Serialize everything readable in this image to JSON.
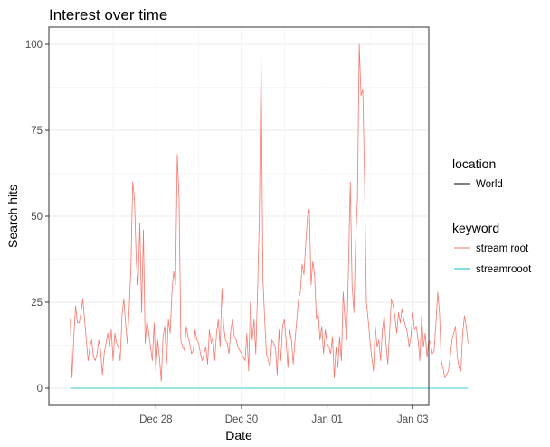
{
  "chart_data": {
    "type": "line",
    "title": "Interest over time",
    "xlabel": "Date",
    "ylabel": "Search hits",
    "xlim": [
      "2017-12-25T12:00",
      "2018-01-03T09:00"
    ],
    "ylim": [
      -5,
      105
    ],
    "x_ticks": [
      {
        "value": "2017-12-28",
        "label": "Dec 28"
      },
      {
        "value": "2017-12-30",
        "label": "Dec 30"
      },
      {
        "value": "2018-01-01",
        "label": "Jan 01"
      },
      {
        "value": "2018-01-03",
        "label": "Jan 03"
      }
    ],
    "y_ticks": [
      0,
      25,
      50,
      75,
      100
    ],
    "grid": true,
    "legend_placement": "right",
    "legends": [
      {
        "title": "location",
        "entries": [
          {
            "label": "World",
            "color": "#000000"
          }
        ]
      },
      {
        "title": "keyword",
        "entries": [
          {
            "label": "stream root",
            "color": "#F8766D"
          },
          {
            "label": "streamrooot",
            "color": "#00BFC4"
          }
        ]
      }
    ],
    "x_start": "2017-12-26T00:00",
    "x_step_hours": 1,
    "series": [
      {
        "name": "stream root",
        "color": "#F8766D",
        "values": [
          20,
          3,
          15,
          24,
          19,
          19,
          22,
          26,
          20,
          14,
          8,
          12,
          14,
          9,
          8,
          10,
          14,
          11,
          4,
          10,
          13,
          16,
          12,
          17,
          8,
          16,
          13,
          12,
          8,
          21,
          26,
          19,
          13,
          23,
          35,
          60,
          55,
          37,
          30,
          48,
          22,
          46,
          13,
          20,
          16,
          12,
          8,
          19,
          5,
          14,
          9,
          2,
          15,
          18,
          7,
          20,
          16,
          28,
          34,
          30,
          68,
          55,
          14,
          12,
          11,
          18,
          15,
          13,
          10,
          11,
          17,
          14,
          13,
          10,
          8,
          10,
          12,
          7,
          17,
          13,
          15,
          8,
          16,
          20,
          12,
          29,
          18,
          14,
          13,
          10,
          17,
          20,
          15,
          14,
          12,
          11,
          10,
          9,
          8,
          16,
          5,
          25,
          14,
          20,
          10,
          28,
          50,
          96,
          32,
          20,
          10,
          8,
          6,
          14,
          13,
          12,
          4,
          17,
          8,
          18,
          20,
          14,
          6,
          17,
          14,
          7,
          14,
          20,
          26,
          28,
          36,
          33,
          42,
          50,
          52,
          30,
          37,
          33,
          20,
          22,
          14,
          18,
          10,
          17,
          13,
          12,
          10,
          15,
          3,
          12,
          6,
          15,
          8,
          28,
          20,
          14,
          36,
          60,
          30,
          22,
          43,
          55,
          100,
          85,
          87,
          60,
          25,
          20,
          14,
          9,
          5,
          18,
          12,
          14,
          8,
          17,
          21,
          13,
          7,
          16,
          26,
          24,
          21,
          16,
          22,
          19,
          23,
          20,
          18,
          16,
          12,
          15,
          22,
          17,
          18,
          14,
          8,
          21,
          12,
          16,
          9,
          14,
          13,
          10,
          11,
          19,
          28,
          22,
          8,
          6,
          3,
          4,
          5,
          9,
          14,
          16,
          18,
          9,
          6,
          5,
          16,
          21,
          18,
          13
        ]
      },
      {
        "name": "streamrooot",
        "color": "#00BFC4",
        "values": [
          0,
          0
        ]
      }
    ]
  }
}
